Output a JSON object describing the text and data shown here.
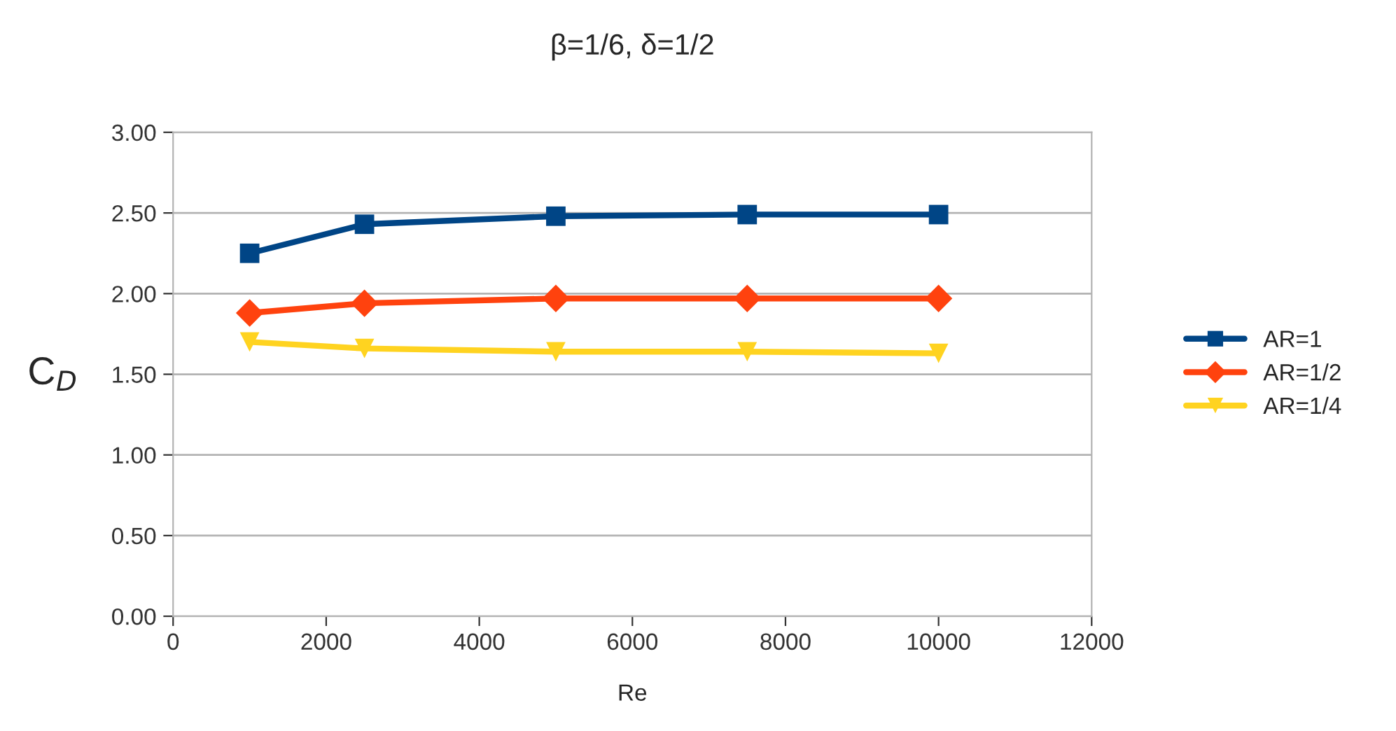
{
  "chart_data": {
    "type": "line",
    "title": "β=1/6, δ=1/2",
    "xlabel": "Re",
    "ylabel": "C$_{D}$",
    "x": [
      1000,
      2500,
      5000,
      7500,
      10000
    ],
    "series": [
      {
        "name": "AR=1",
        "color": "#004586",
        "marker": "square",
        "values": [
          2.25,
          2.43,
          2.48,
          2.49,
          2.49
        ]
      },
      {
        "name": "AR=1/2",
        "color": "#ff420e",
        "marker": "diamond",
        "values": [
          1.88,
          1.94,
          1.97,
          1.97,
          1.97
        ]
      },
      {
        "name": "AR=1/4",
        "color": "#ffd320",
        "marker": "triangle",
        "values": [
          1.7,
          1.66,
          1.64,
          1.64,
          1.63
        ]
      }
    ],
    "xlim": [
      0,
      12000
    ],
    "xticks": [
      0,
      2000,
      4000,
      6000,
      8000,
      10000,
      12000
    ],
    "ylim": [
      0,
      3
    ],
    "yticks": [
      {
        "value": 0,
        "label": "0.00"
      },
      {
        "value": 0.5,
        "label": "0.50"
      },
      {
        "value": 1,
        "label": "1.00"
      },
      {
        "value": 1.5,
        "label": "1.50"
      },
      {
        "value": 2,
        "label": "2.00"
      },
      {
        "value": 2.5,
        "label": "2.50"
      },
      {
        "value": 3,
        "label": "3.00"
      }
    ],
    "grid": "y",
    "legend": "right",
    "line_style": "solid"
  }
}
